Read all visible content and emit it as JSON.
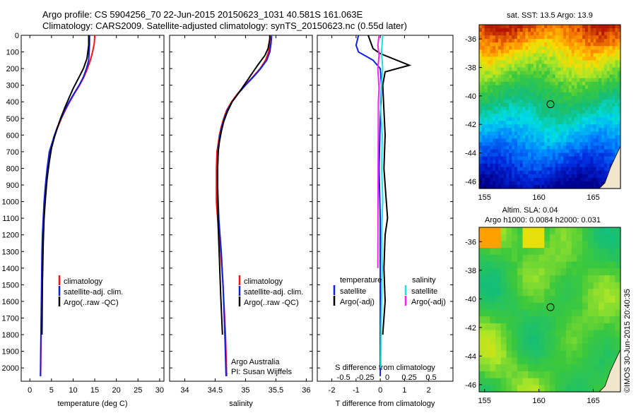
{
  "header": {
    "line1": "Argo profile: CS 5904256_70 22-Jun-2015 20150623_1031 40.581S 161.063E",
    "line2": "Climatology: CARS2009. Satellite-adjusted climatology: synTS_20150623.nc (0.55d later)"
  },
  "credits": {
    "org": "Argo Australia",
    "pi": "PI: Susan Wijffels",
    "stamp": "©IMOS 30-Jun-2015 20:40:35"
  },
  "colors": {
    "climatology": "#ff1010",
    "satellite": "#1020e0",
    "argo": "#000000",
    "sal_satellite": "#20e0e0",
    "sal_argo": "#ff20ff"
  },
  "legend_profiles": {
    "climatology": "climatology",
    "satellite": "satellite-adj. clim.",
    "argo": "Argo(..raw -QC)"
  },
  "legend_diff": {
    "temperature_head": "temperature",
    "salinity_head": "salinity",
    "t_satellite": "satellite",
    "t_argo": "Argo(-adj)",
    "s_satellite": "satellite",
    "s_argo": "Argo(-adj)"
  },
  "chart_data": [
    {
      "type": "line",
      "id": "temperature",
      "xlabel": "temperature (deg C)",
      "ylabel": "",
      "xlim": [
        -2,
        31
      ],
      "ylim": [
        2080,
        0
      ],
      "x_ticks": [
        "0",
        "5",
        "10",
        "15",
        "20",
        "25",
        "30"
      ],
      "y_ticks": [
        "0",
        "100",
        "200",
        "300",
        "400",
        "500",
        "600",
        "700",
        "800",
        "900",
        "1000",
        "1100",
        "1200",
        "1300",
        "1400",
        "1500",
        "1600",
        "1700",
        "1800",
        "1900",
        "2000"
      ],
      "series": [
        {
          "name": "climatology",
          "x": [
            15.0,
            14.9,
            14.5,
            14.0,
            13.3,
            12.5,
            11.5,
            10.3,
            9.2,
            8.2,
            7.3,
            6.5,
            5.8,
            5.2,
            4.6,
            4.1,
            3.7,
            3.4,
            3.2,
            3.0,
            2.9,
            2.8,
            2.6,
            2.5
          ],
          "y": [
            0,
            50,
            100,
            150,
            200,
            250,
            300,
            350,
            400,
            450,
            500,
            550,
            600,
            650,
            700,
            800,
            900,
            1000,
            1100,
            1200,
            1300,
            1500,
            1800,
            2050
          ]
        },
        {
          "name": "satellite-adj. clim.",
          "x": [
            13.8,
            13.8,
            13.7,
            13.6,
            13.1,
            12.4,
            11.4,
            10.2,
            9.1,
            8.1,
            7.2,
            6.4,
            5.7,
            5.1,
            4.5,
            4.0,
            3.6,
            3.3,
            3.1,
            2.9,
            2.8,
            2.7,
            2.55,
            2.45
          ],
          "y": [
            0,
            50,
            100,
            150,
            200,
            250,
            300,
            350,
            400,
            450,
            500,
            550,
            600,
            650,
            700,
            800,
            900,
            1000,
            1100,
            1200,
            1300,
            1500,
            1800,
            2050
          ]
        },
        {
          "name": "Argo(..raw -QC)",
          "x": [
            13.6,
            13.6,
            13.6,
            13.6,
            13.5,
            13.4,
            13.2,
            12.4,
            11.2,
            10.0,
            9.0,
            8.0,
            7.1,
            6.3,
            5.6,
            5.0,
            4.5,
            4.0,
            3.6,
            3.3,
            3.1,
            2.9,
            2.8
          ],
          "y": [
            0,
            20,
            40,
            60,
            80,
            100,
            140,
            200,
            260,
            320,
            380,
            440,
            500,
            560,
            620,
            680,
            760,
            860,
            980,
            1100,
            1250,
            1500,
            1800
          ]
        }
      ]
    },
    {
      "type": "line",
      "id": "salinity",
      "xlabel": "salinity",
      "ylabel": "",
      "xlim": [
        33.75,
        36.1
      ],
      "ylim": [
        2080,
        0
      ],
      "x_ticks": [
        "34",
        "34.5",
        "35",
        "35.5",
        "36"
      ],
      "series": [
        {
          "name": "climatology",
          "x": [
            35.4,
            35.4,
            35.38,
            35.33,
            35.24,
            35.12,
            34.99,
            34.87,
            34.77,
            34.69,
            34.64,
            34.6,
            34.57,
            34.55,
            34.53,
            34.52,
            34.52,
            34.52,
            34.54,
            34.56,
            34.59,
            34.63,
            34.67,
            34.69
          ],
          "y": [
            0,
            50,
            100,
            150,
            200,
            250,
            300,
            350,
            400,
            450,
            500,
            550,
            600,
            650,
            700,
            800,
            900,
            1000,
            1100,
            1200,
            1300,
            1500,
            1800,
            2050
          ]
        },
        {
          "name": "satellite-adj. clim.",
          "x": [
            35.43,
            35.42,
            35.4,
            35.35,
            35.25,
            35.13,
            35.0,
            34.88,
            34.78,
            34.7,
            34.65,
            34.61,
            34.58,
            34.56,
            34.55,
            34.54,
            34.54,
            34.55,
            34.56,
            34.58,
            34.6,
            34.63,
            34.66,
            34.68
          ],
          "y": [
            0,
            50,
            100,
            150,
            200,
            250,
            300,
            350,
            400,
            450,
            500,
            550,
            600,
            650,
            700,
            800,
            900,
            1000,
            1100,
            1200,
            1300,
            1500,
            1800,
            2050
          ]
        },
        {
          "name": "Argo(..raw -QC)",
          "x": [
            35.4,
            35.4,
            35.39,
            35.37,
            35.32,
            35.2,
            35.05,
            34.9,
            34.78,
            34.7,
            34.64,
            34.6,
            34.57,
            34.55,
            34.54,
            34.54,
            34.55,
            34.57,
            34.59,
            34.62
          ],
          "y": [
            0,
            20,
            40,
            80,
            120,
            180,
            260,
            340,
            400,
            460,
            520,
            580,
            640,
            700,
            800,
            950,
            1150,
            1350,
            1550,
            1800
          ]
        }
      ]
    },
    {
      "type": "line",
      "id": "difference",
      "xlabel": "T difference from climatology",
      "x2label": "S difference from climatology",
      "xlim": [
        -2.6,
        3.0
      ],
      "ylim": [
        2080,
        0
      ],
      "x_ticks": [
        "-2",
        "-1",
        "0",
        "1",
        "2"
      ],
      "x2_ticks": [
        "-0.5",
        "-0.25",
        "0",
        "0.25",
        "0.5"
      ],
      "series": [
        {
          "name": "T satellite",
          "x": [
            -0.9,
            -1.0,
            -0.9,
            -0.3,
            0.0,
            0.05,
            0.0,
            -0.05,
            0.0,
            0.0,
            0.0,
            0.0,
            0.0
          ],
          "y": [
            0,
            60,
            100,
            150,
            200,
            300,
            500,
            800,
            1100,
            1400,
            1700,
            1900,
            2050
          ]
        },
        {
          "name": "T Argo(-adj)",
          "x": [
            -0.5,
            -0.3,
            0.0,
            1.2,
            0.2,
            0.1,
            0.15,
            0.2,
            0.15,
            0.25,
            0.3,
            0.2,
            0.15,
            0.2,
            0.1
          ],
          "y": [
            0,
            80,
            110,
            180,
            220,
            300,
            450,
            600,
            800,
            1000,
            1100,
            1200,
            1400,
            1600,
            1800
          ]
        },
        {
          "name": "S satellite",
          "x": [
            0.1,
            0.05,
            0.1,
            0.0,
            0.08,
            0.06,
            0.1,
            0.05,
            0.08,
            0.05,
            0.03,
            0.02
          ],
          "y": [
            0,
            100,
            200,
            400,
            600,
            800,
            1000,
            1200,
            1400,
            1600,
            1800,
            2000
          ]
        },
        {
          "name": "S Argo(-adj)",
          "x": [
            -0.05,
            -0.1,
            -0.05,
            -0.1,
            -0.05,
            -0.08,
            -0.1
          ],
          "y": [
            0,
            60,
            120,
            200,
            320,
            400,
            1400
          ]
        }
      ]
    },
    {
      "type": "heatmap",
      "id": "sst_map",
      "title": "sat. SST: 13.5 Argo: 13.9",
      "xlim": [
        154.5,
        167.5
      ],
      "ylim": [
        -46.5,
        -35
      ],
      "x_ticks": [
        "155",
        "160",
        "165"
      ],
      "y_ticks": [
        "-36",
        "-38",
        "-40",
        "-42",
        "-44",
        "-46"
      ],
      "marker": {
        "lon": 161.063,
        "lat": -40.581
      }
    },
    {
      "type": "heatmap",
      "id": "sla_map",
      "title1": "Altim. SLA: 0.04",
      "title2": "Argo h1000: 0.0084 h2000: 0.031",
      "xlim": [
        154.5,
        167.5
      ],
      "ylim": [
        -46.5,
        -35
      ],
      "x_ticks": [
        "155",
        "160",
        "165"
      ],
      "y_ticks": [
        "-36",
        "-38",
        "-40",
        "-42",
        "-44",
        "-46"
      ],
      "marker": {
        "lon": 161.063,
        "lat": -40.581
      }
    }
  ]
}
